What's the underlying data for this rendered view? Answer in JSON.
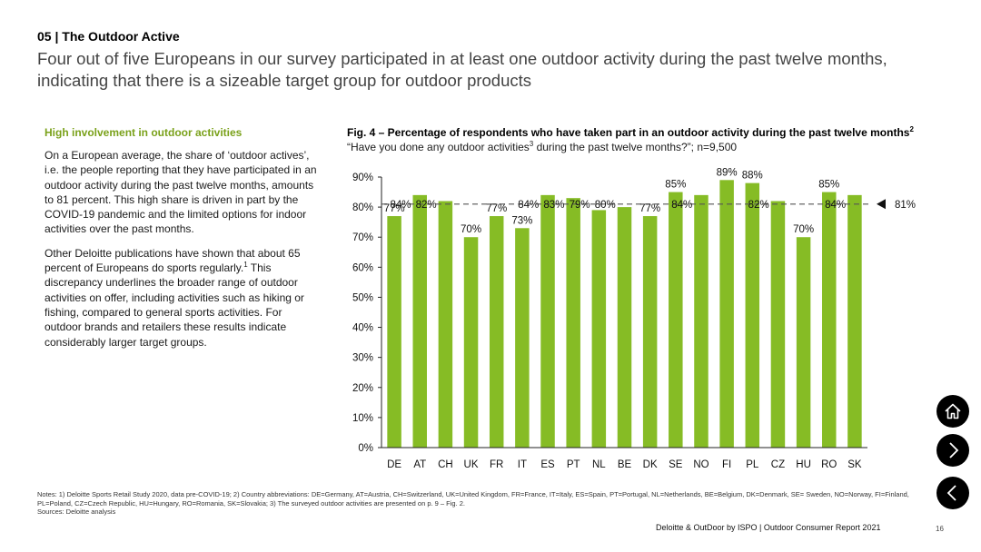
{
  "header": {
    "section": "05 | The Outdoor Active",
    "headline": "Four out of five Europeans in our survey participated in at least one outdoor activity during the past twelve months, indicating that there is a sizeable target group for outdoor products"
  },
  "sidebar": {
    "title": "High involvement in outdoor activities",
    "p1": "On a European average, the share of ‘outdoor actives’, i.e. the people reporting that they have participated in an outdoor activity during the past twelve months, amounts to 81 percent. This high share is driven in part by the COVID-19 pandemic and the limited options for indoor activities over the past months.",
    "p2_a": "Other Deloitte publications have shown that about 65 percent of Europeans do sports regularly.",
    "p2_sup": "1",
    "p2_b": " This discrepancy underlines the broader range of outdoor activities on offer, including activities such as hiking or fishing, compared to general sports activities. For outdoor brands and retailers these results indicate considerably larger target groups."
  },
  "figure": {
    "title": "Fig. 4 – Percentage of respondents who have taken part in an outdoor activity during the past twelve months",
    "title_sup": "2",
    "subtitle_a": "“Have you done any outdoor activities",
    "subtitle_sup": "3",
    "subtitle_b": " during the past twelve months?”; n=9,500"
  },
  "chart_data": {
    "type": "bar",
    "title": "Fig. 4 – Percentage of respondents who have taken part in an outdoor activity during the past twelve months",
    "categories": [
      "DE",
      "AT",
      "CH",
      "UK",
      "FR",
      "IT",
      "ES",
      "PT",
      "NL",
      "BE",
      "DK",
      "SE",
      "NO",
      "FI",
      "PL",
      "CZ",
      "HU",
      "RO",
      "SK"
    ],
    "values": [
      77,
      84,
      82,
      70,
      77,
      73,
      84,
      83,
      79,
      80,
      77,
      85,
      84,
      89,
      88,
      82,
      70,
      85,
      84
    ],
    "labels": [
      "77%",
      "84%",
      "82%",
      "70%",
      "77%",
      "73%",
      "84%",
      "83%",
      "79%",
      "80%",
      "77%",
      "85%",
      "84%",
      "89%",
      "88%",
      "82%",
      "70%",
      "85%",
      "84%"
    ],
    "yticks": [
      0,
      10,
      20,
      30,
      40,
      50,
      60,
      70,
      80,
      90
    ],
    "ytick_labels": [
      "0%",
      "10%",
      "20%",
      "30%",
      "40%",
      "50%",
      "60%",
      "70%",
      "80%",
      "90%"
    ],
    "ylim": [
      0,
      90
    ],
    "average": 81,
    "average_label": "81%",
    "xlabel": "",
    "ylabel": "",
    "bar_color": "#86bc25",
    "line_color": "#555555"
  },
  "notes": {
    "line1": "Notes: 1) Deloitte Sports Retail Study 2020, data pre-COVID-19; 2) Country abbreviations: DE=Germany, AT=Austria, CH=Switzerland, UK=United Kingdom, FR=France, IT=Italy, ES=Spain, PT=Portugal, NL=Netherlands, BE=Belgium, DK=Denmark, SE= Sweden, NO=Norway, FI=Finland, PL=Poland, CZ=Czech Republic, HU=Hungary, RO=Romania, SK=Slovakia; 3) The surveyed outdoor activities are presented on p. 9 – Fig. 2.",
    "sources": "Sources: Deloitte analysis"
  },
  "footer": {
    "text": "Deloitte & OutDoor by ISPO | Outdoor Consumer Report 2021",
    "page": "16"
  },
  "nav": {
    "home_icon": "home-icon",
    "next_icon": "chevron-right-icon",
    "prev_icon": "chevron-left-icon"
  }
}
